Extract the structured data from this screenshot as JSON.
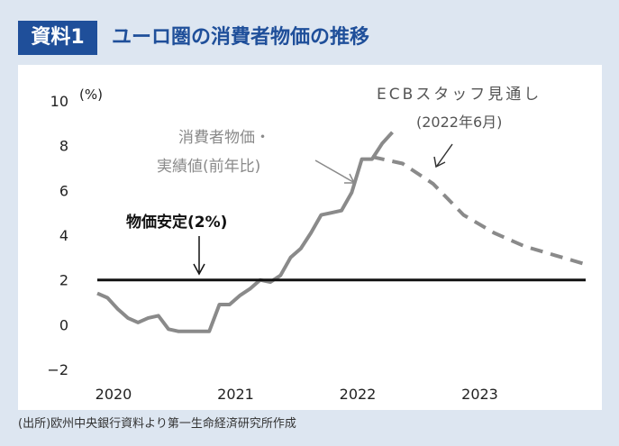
{
  "header": {
    "badge": "資料1",
    "title": "ユーロ圏の消費者物価の推移"
  },
  "source": "(出所)欧州中央銀行資料より第一生命経済研究所作成",
  "colors": {
    "brand": "#1f4f9a",
    "background": "#dde6f1",
    "actual_line": "#8a8a8a",
    "forecast_line": "#8a8a8a",
    "target_line": "#111111"
  },
  "chart_data": {
    "type": "line",
    "unit_label": "(%)",
    "ylim": [
      -2,
      10
    ],
    "yticks": [
      10,
      8,
      6,
      4,
      2,
      0,
      -2
    ],
    "ytick_labels": [
      "10",
      "8",
      "6",
      "4",
      "2",
      "0",
      "−2"
    ],
    "xlim": [
      0,
      48
    ],
    "xticks": [
      {
        "label": "2020",
        "month": 0
      },
      {
        "label": "2021",
        "month": 12
      },
      {
        "label": "2022",
        "month": 24
      },
      {
        "label": "2023",
        "month": 36
      }
    ],
    "series": [
      {
        "name": "消費者物価・実績値(前年比)",
        "style": "solid",
        "x": [
          0,
          1,
          2,
          3,
          4,
          5,
          6,
          7,
          8,
          9,
          10,
          11,
          12,
          13,
          14,
          15,
          16,
          17,
          18,
          19,
          20,
          21,
          22,
          23,
          24,
          25,
          26,
          27,
          28,
          29
        ],
        "values": [
          1.4,
          1.2,
          0.7,
          0.3,
          0.1,
          0.3,
          0.4,
          -0.2,
          -0.3,
          -0.3,
          -0.3,
          -0.3,
          0.9,
          0.9,
          1.3,
          1.6,
          2.0,
          1.9,
          2.2,
          3.0,
          3.4,
          4.1,
          4.9,
          5.0,
          5.1,
          5.9,
          7.4,
          7.4,
          8.1,
          8.6
        ]
      },
      {
        "name": "ECBスタッフ見通し(2022年6月)",
        "style": "dashed",
        "x": [
          27,
          30,
          33,
          36,
          39,
          42,
          45,
          48
        ],
        "values": [
          7.5,
          7.2,
          6.3,
          4.9,
          4.1,
          3.5,
          3.1,
          2.7
        ]
      },
      {
        "name": "物価安定(2%)",
        "style": "solid-bold",
        "x": [
          0,
          48
        ],
        "values": [
          2,
          2
        ]
      }
    ],
    "annotations": {
      "actual_line1": "消費者物価・",
      "actual_line2": "実績値(前年比)",
      "forecast_line1": "ECBスタッフ見通し",
      "forecast_line2": "(2022年6月)",
      "target": "物価安定(2%)"
    }
  }
}
